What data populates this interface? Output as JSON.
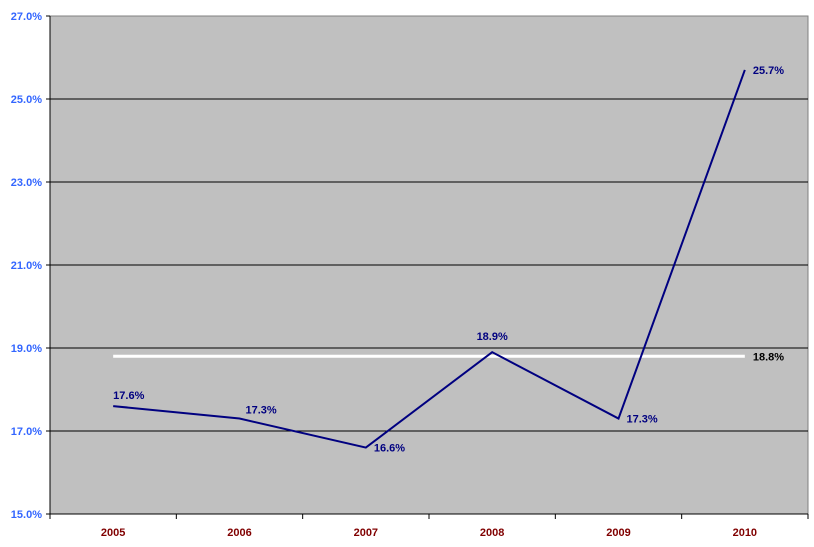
{
  "chart_data": {
    "type": "line",
    "categories": [
      "2005",
      "2006",
      "2007",
      "2008",
      "2009",
      "2010"
    ],
    "series": [
      {
        "values": [
          17.6,
          17.3,
          16.6,
          18.9,
          17.3,
          25.7
        ],
        "labels": [
          "17.6%",
          "17.3%",
          "16.6%",
          "18.9%",
          "17.3%",
          "25.7%"
        ],
        "color": "#000080"
      }
    ],
    "reference_line": {
      "value": 18.8,
      "label": "18.8%",
      "color": "#ffffff"
    },
    "ylim": [
      15.0,
      27.0
    ],
    "yticks": [
      15.0,
      17.0,
      19.0,
      21.0,
      23.0,
      25.0,
      27.0
    ],
    "ytick_labels": [
      "15.0%",
      "17.0%",
      "19.0%",
      "21.0%",
      "23.0%",
      "25.0%",
      "27.0%"
    ],
    "grid": true,
    "legend": "none",
    "colors": {
      "plot_background": "#c0c0c0",
      "gridline": "#000000",
      "ytick_text": "#3366ff",
      "xtick_text": "#800000",
      "series_label_text": "#000080",
      "reference_label_text": "#000000"
    }
  }
}
